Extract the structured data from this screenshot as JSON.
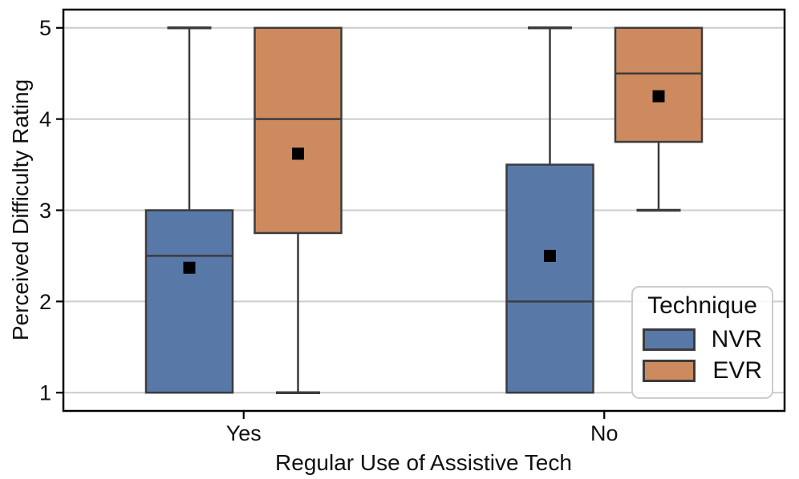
{
  "chart_data": {
    "type": "box",
    "title": "",
    "xlabel": "Regular Use of Assistive Tech",
    "ylabel": "Perceived Difficulty Rating",
    "categories": [
      "Yes",
      "No"
    ],
    "yticks": [
      1,
      2,
      3,
      4,
      5
    ],
    "ylim": [
      0.8,
      5.2
    ],
    "grid": "horizontal",
    "legend": {
      "title": "Technique",
      "position": "lower-right"
    },
    "colors": {
      "box_edge": "#3C3C3C",
      "grid": "#CCCCCC",
      "axis": "#000000",
      "mean_marker": "#000000"
    },
    "mean_marker": "black-filled-square",
    "series": [
      {
        "name": "NVR",
        "color": "#5878A8",
        "boxes": [
          {
            "category": "Yes",
            "whisker_low": 1,
            "q1": 1,
            "median": 2.5,
            "q3": 3,
            "whisker_high": 5,
            "mean": 2.37
          },
          {
            "category": "No",
            "whisker_low": 1,
            "q1": 1,
            "median": 2,
            "q3": 3.5,
            "whisker_high": 5,
            "mean": 2.5
          }
        ]
      },
      {
        "name": "EVR",
        "color": "#CC8A5E",
        "boxes": [
          {
            "category": "Yes",
            "whisker_low": 1,
            "q1": 2.75,
            "median": 4,
            "q3": 5,
            "whisker_high": 5,
            "mean": 3.62
          },
          {
            "category": "No",
            "whisker_low": 3,
            "q1": 3.75,
            "median": 4.5,
            "q3": 5,
            "whisker_high": 5,
            "mean": 4.25
          }
        ]
      }
    ]
  }
}
